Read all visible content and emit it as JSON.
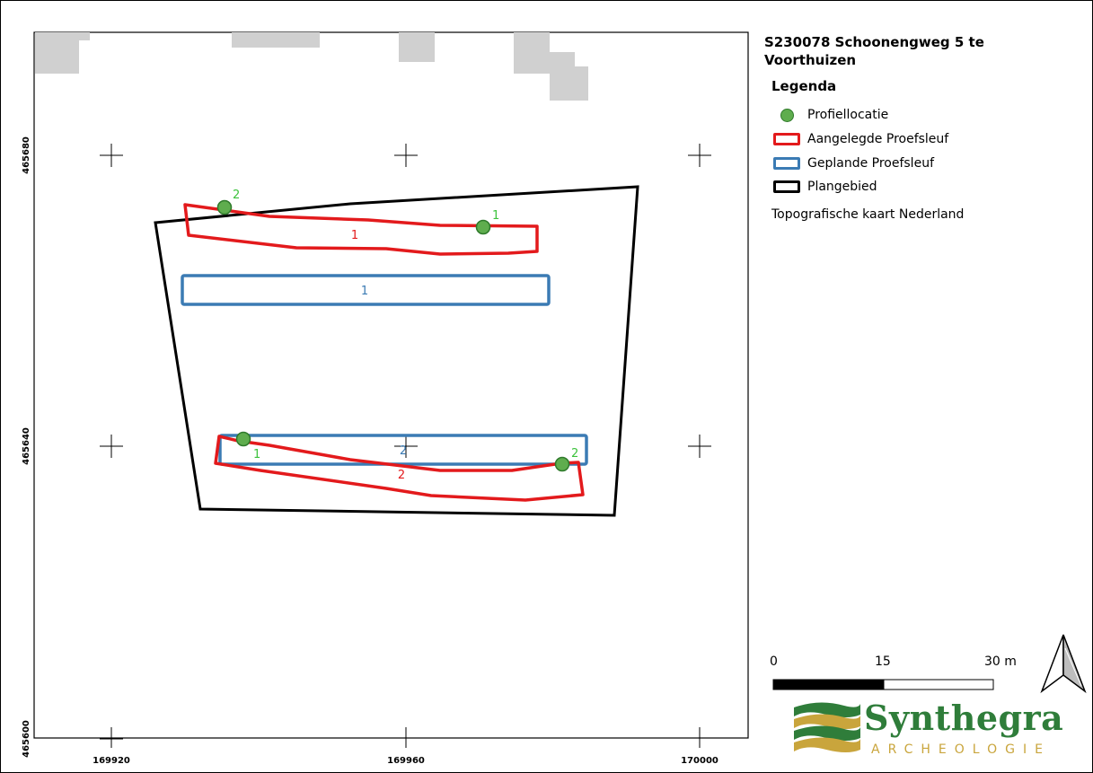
{
  "title": "S230078 Schoonengweg 5 te Voorthuizen",
  "legend": {
    "title": "Legenda",
    "items": [
      {
        "label": "Profiellocatie",
        "symbol": "point",
        "color": "#5fad4e"
      },
      {
        "label": "Aangelegde Proefsleuf",
        "symbol": "polygon-outline",
        "color": "#e31a1c"
      },
      {
        "label": "Geplande Proefsleuf",
        "symbol": "polygon-outline",
        "color": "#3b7bb4"
      },
      {
        "label": "Plangebied",
        "symbol": "polygon-outline",
        "color": "#000000"
      }
    ],
    "source": "Topografische kaart Nederland"
  },
  "scalebar": {
    "labels": [
      "0",
      "15",
      "30 m"
    ]
  },
  "grid": {
    "x_labels": [
      "169920",
      "169960",
      "170000"
    ],
    "y_labels": [
      "465680",
      "465640",
      "465600"
    ]
  },
  "features": {
    "aangelegde_labels": [
      "1",
      "2"
    ],
    "geplande_labels": [
      "1",
      "2"
    ],
    "profiel_labels": [
      "2",
      "1",
      "1",
      "2"
    ]
  },
  "logo": {
    "name": "Synthegra",
    "subtitle": "ARCHEOLOGIE"
  },
  "colors": {
    "aangelegde": "#e31a1c",
    "geplande": "#3b7bb4",
    "plangebied": "#000000",
    "profiel": "#5fad4e",
    "buildings": "#d0d0d0",
    "logo_green": "#2f7d3a",
    "logo_gold": "#c9a53c"
  },
  "icons": {
    "north_arrow": "north-arrow-icon",
    "logo": "synthegra-logo-icon"
  }
}
